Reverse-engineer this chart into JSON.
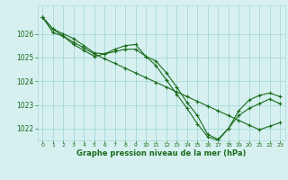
{
  "line1_x": [
    0,
    1,
    2,
    3,
    4,
    5,
    6,
    7,
    8,
    9,
    10,
    11,
    12,
    13,
    14,
    15,
    16,
    17,
    18,
    19,
    20,
    21,
    22,
    23
  ],
  "line1_y": [
    1026.7,
    1026.2,
    1026.0,
    1025.8,
    1025.5,
    1025.2,
    1025.15,
    1025.35,
    1025.5,
    1025.55,
    1025.05,
    1024.85,
    1024.35,
    1023.75,
    1023.1,
    1022.55,
    1021.75,
    1021.55,
    1022.0,
    1022.75,
    1023.2,
    1023.4,
    1023.5,
    1023.35
  ],
  "line2_x": [
    0,
    1,
    2,
    3,
    4,
    5,
    6,
    7,
    8,
    9,
    10,
    11,
    12,
    13,
    14,
    15,
    16,
    17,
    18,
    19,
    20,
    21,
    22,
    23
  ],
  "line2_y": [
    1026.7,
    1026.05,
    1025.9,
    1025.55,
    1025.3,
    1025.05,
    1025.15,
    1025.25,
    1025.35,
    1025.35,
    1025.05,
    1024.65,
    1024.05,
    1023.45,
    1022.85,
    1022.2,
    1021.65,
    1021.5,
    1022.0,
    1022.55,
    1022.85,
    1023.05,
    1023.25,
    1023.05
  ],
  "line3_x": [
    0,
    1,
    2,
    3,
    4,
    5,
    6,
    7,
    8,
    9,
    10,
    11,
    12,
    13,
    14,
    15,
    16,
    17,
    18,
    19,
    20,
    21,
    22,
    23
  ],
  "line3_y": [
    1026.7,
    1026.2,
    1025.9,
    1025.65,
    1025.4,
    1025.15,
    1024.95,
    1024.75,
    1024.55,
    1024.35,
    1024.15,
    1023.95,
    1023.75,
    1023.55,
    1023.35,
    1023.15,
    1022.95,
    1022.75,
    1022.55,
    1022.35,
    1022.15,
    1021.95,
    1022.1,
    1022.25
  ],
  "line_color": "#1a6b1a",
  "marker": "+",
  "markersize": 3,
  "linewidth": 0.8,
  "bg_color": "#d6f0f0",
  "grid_color": "#a8d8d8",
  "xlabel": "Graphe pression niveau de la mer (hPa)",
  "xlabel_color": "#1a6b1a",
  "tick_color": "#1a6b1a",
  "ylim": [
    1021.5,
    1027.2
  ],
  "xlim": [
    -0.5,
    23.5
  ],
  "yticks": [
    1022,
    1023,
    1024,
    1025,
    1026
  ],
  "xticks": [
    0,
    1,
    2,
    3,
    4,
    5,
    6,
    7,
    8,
    9,
    10,
    11,
    12,
    13,
    14,
    15,
    16,
    17,
    18,
    19,
    20,
    21,
    22,
    23
  ]
}
